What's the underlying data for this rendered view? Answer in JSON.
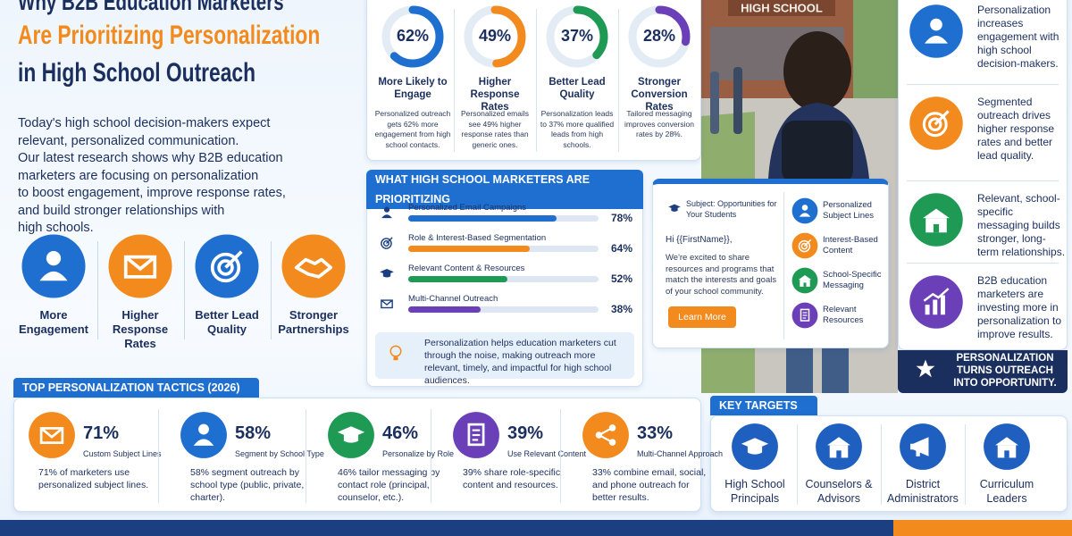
{
  "header": {
    "title_lines": [
      "Why B2B Education Marketers",
      "Are Prioritizing Personalization",
      "in High School Outreach"
    ],
    "intro": [
      "Today's high school decision-makers expect",
      "relevant, personalized communication.",
      "Our latest research shows why B2B education",
      "marketers are focusing on personalization",
      "to boost engagement, improve response rates,",
      "and build stronger relationships with",
      "high schools."
    ]
  },
  "benefits": [
    "More Engagement",
    "Higher Response Rates",
    "Better Lead Quality",
    "Stronger Partnerships"
  ],
  "stats": {
    "xlim": [
      0,
      100
    ],
    "items": [
      {
        "percent": {
          "value": 62,
          "label": "62%"
        },
        "color": "#1f6fd1",
        "title": "More Likely to Engage",
        "text": "Personalized outreach gets 62% more engagement from high school contacts."
      },
      {
        "percent": {
          "value": 49,
          "label": "49%"
        },
        "color": "#f28a1e",
        "title": "Higher Response Rates",
        "text": "Personalized emails see 49% higher response rates than generic ones."
      },
      {
        "percent": {
          "value": 37,
          "label": "37%"
        },
        "color": "#1f9a55",
        "title": "Better Lead Quality",
        "text": "Personalization leads to 37% more qualified leads from high schools."
      },
      {
        "percent": {
          "value": 28,
          "label": "28%"
        },
        "color": "#6b3fb8",
        "title": "Stronger Conversion Rates",
        "text": "Tailored messaging improves conversion rates by 28%."
      }
    ]
  },
  "priorities": {
    "title": "WHAT HIGH SCHOOL MARKETERS ARE PRIORITIZING",
    "xlim": [
      0,
      100
    ],
    "items": [
      {
        "label": "Personalized Email Campaigns",
        "percent": {
          "value": 78,
          "label": "78%"
        },
        "color": "#1f6fd1"
      },
      {
        "label": "Role & Interest-Based Segmentation",
        "percent": {
          "value": 64,
          "label": "64%"
        },
        "color": "#f28a1e"
      },
      {
        "label": "Relevant Content & Resources",
        "percent": {
          "value": 52,
          "label": "52%"
        },
        "color": "#1f9a55"
      },
      {
        "label": "Multi-Channel Outreach",
        "percent": {
          "value": 38,
          "label": "38%"
        },
        "color": "#6b3fb8"
      }
    ],
    "note": "Personalization helps education marketers cut through the noise, making outreach more relevant, timely, and impactful for high school audiences."
  },
  "email": {
    "subject": "Subject: Opportunities for Your Students",
    "greeting": "Hi {{FirstName}},",
    "body": "We're excited to share resources and programs that match the interests and goals of your school community.",
    "button": "Learn More",
    "features": [
      "Personalized Subject Lines",
      "Interest-Based Content",
      "School-Specific Messaging",
      "Relevant Resources"
    ]
  },
  "photo": {
    "sign": "HIGH SCHOOL"
  },
  "sidebar": {
    "items": [
      "Personalization increases engagement with high school decision-makers.",
      "Segmented outreach drives higher response rates and better lead quality.",
      "Relevant, school-specific messaging builds stronger, long-term relationships.",
      "B2B education marketers are investing more in personalization to improve results."
    ],
    "banner": "PERSONALIZATION TURNS OUTREACH INTO OPPORTUNITY."
  },
  "tactics": {
    "title": "TOP PERSONALIZATION TACTICS (2026)",
    "items": [
      {
        "percent": "71%",
        "name": "Custom Subject Lines",
        "text": "71% of marketers use personalized subject lines."
      },
      {
        "percent": "58%",
        "name": "Segment by School Type",
        "text": "58% segment outreach by school type (public, private, charter)."
      },
      {
        "percent": "46%",
        "name": "Personalize by Role",
        "text": "46% tailor messaging by contact role (principal, counselor, etc.)."
      },
      {
        "percent": "39%",
        "name": "Use Relevant Content",
        "text": "39% share role-specific content and resources."
      },
      {
        "percent": "33%",
        "name": "Multi-Channel Approach",
        "text": "33% combine email, social, and phone outreach for better results."
      }
    ]
  },
  "targets": {
    "title": "KEY TARGETS",
    "items": [
      "High School Principals",
      "Counselors & Advisors",
      "District Administrators",
      "Curriculum Leaders"
    ]
  }
}
